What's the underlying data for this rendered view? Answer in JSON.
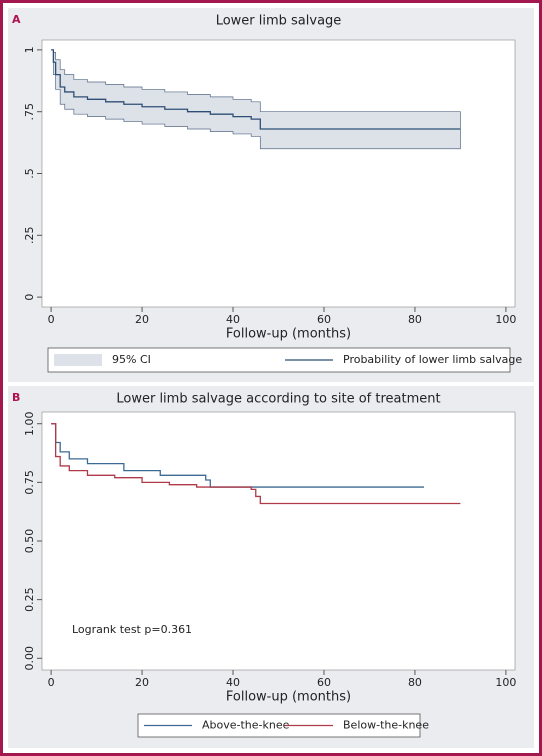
{
  "chart_data": [
    {
      "type": "km",
      "label": "A",
      "title": "Lower limb salvage",
      "x_label": "Follow-up (months)",
      "xlim": [
        -2,
        102
      ],
      "xticks": [
        0,
        20,
        40,
        60,
        80,
        100
      ],
      "ylim": [
        -0.04,
        1.04
      ],
      "yticks": [
        0,
        {
          "value": 0.25,
          "label": ".25"
        },
        {
          "value": 0.5,
          "label": ".5"
        },
        {
          "value": 0.75,
          "label": ".75"
        },
        1
      ],
      "grid": false,
      "legend_position": "bottom",
      "x": [
        0,
        0.5,
        1,
        2,
        3,
        5,
        8,
        12,
        16,
        20,
        25,
        30,
        35,
        40,
        44,
        46,
        90
      ],
      "series": [
        {
          "name": "95% CI",
          "kind": "band",
          "color": "#dde1e8",
          "lower": [
            1,
            0.9,
            0.84,
            0.78,
            0.76,
            0.74,
            0.73,
            0.72,
            0.71,
            0.7,
            0.69,
            0.68,
            0.67,
            0.66,
            0.65,
            0.6,
            0.6
          ],
          "upper": [
            1,
            0.99,
            0.96,
            0.92,
            0.9,
            0.88,
            0.87,
            0.86,
            0.85,
            0.84,
            0.83,
            0.82,
            0.81,
            0.8,
            0.79,
            0.75,
            0.75
          ]
        },
        {
          "name": "Probability of lower limb salvage",
          "kind": "step",
          "color": "#2e4f75",
          "values": [
            1,
            0.95,
            0.9,
            0.85,
            0.83,
            0.81,
            0.8,
            0.79,
            0.78,
            0.77,
            0.76,
            0.75,
            0.74,
            0.73,
            0.72,
            0.68,
            0.68
          ]
        }
      ]
    },
    {
      "type": "km",
      "label": "B",
      "title": "Lower limb salvage according to site of treatment",
      "x_label": "Follow-up (months)",
      "annotation": "Logrank test p=0.361",
      "xlim": [
        -2,
        102
      ],
      "xticks": [
        0,
        20,
        40,
        60,
        80,
        100
      ],
      "ylim": [
        -0.05,
        1.05
      ],
      "yticks": [
        {
          "value": 0,
          "label": "0.00"
        },
        {
          "value": 0.25,
          "label": "0.25"
        },
        {
          "value": 0.5,
          "label": "0.50"
        },
        {
          "value": 0.75,
          "label": "0.75"
        },
        {
          "value": 1,
          "label": "1.00"
        }
      ],
      "grid": false,
      "legend_position": "bottom",
      "series": [
        {
          "name": "Above-the-knee",
          "kind": "step",
          "color": "#3d6a94",
          "x": [
            0,
            1,
            2,
            4,
            8,
            16,
            24,
            34,
            35,
            82
          ],
          "values": [
            1,
            0.92,
            0.88,
            0.85,
            0.83,
            0.8,
            0.78,
            0.76,
            0.73,
            0.73
          ]
        },
        {
          "name": "Below-the-knee",
          "kind": "step",
          "color": "#b03a48",
          "x": [
            0,
            1,
            2,
            4,
            8,
            14,
            20,
            26,
            32,
            44,
            45,
            46,
            90
          ],
          "values": [
            1,
            0.86,
            0.82,
            0.8,
            0.78,
            0.77,
            0.75,
            0.74,
            0.73,
            0.72,
            0.69,
            0.66,
            0.66
          ]
        }
      ]
    }
  ]
}
